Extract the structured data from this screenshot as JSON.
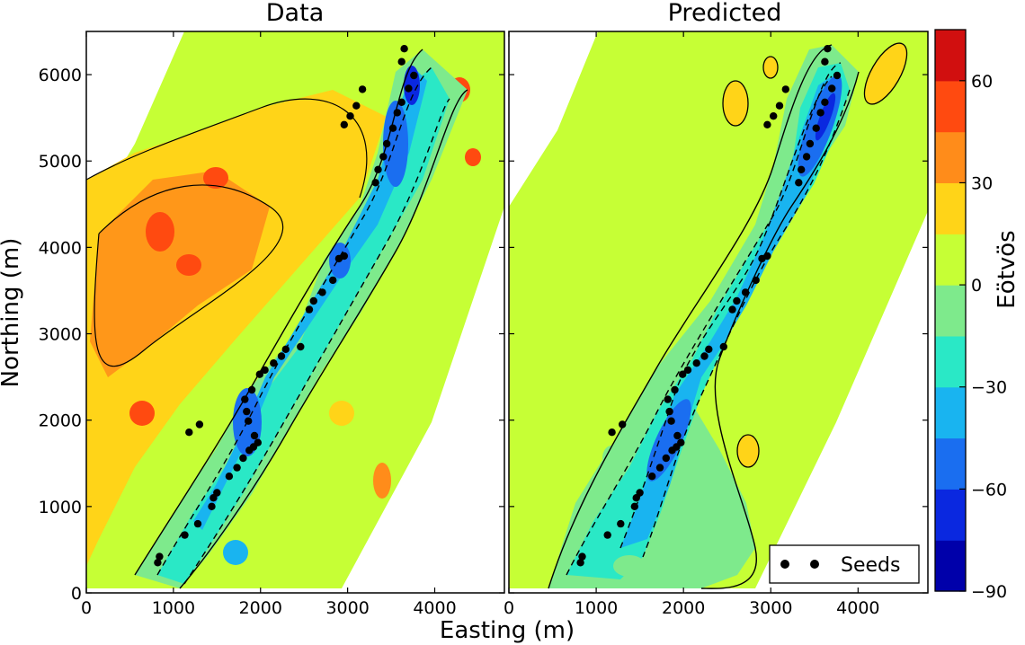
{
  "chart_data": [
    {
      "type": "heatmap",
      "title": "Data",
      "xlabel": "Easting (m)",
      "ylabel": "Northing (m)",
      "xlim": [
        0,
        4800
      ],
      "ylim": [
        0,
        6500
      ],
      "xticks": [
        0,
        1000,
        2000,
        3000,
        4000
      ],
      "yticks": [
        0,
        1000,
        2000,
        3000,
        4000,
        5000,
        6000
      ],
      "seeds": [
        [
          820,
          350
        ],
        [
          840,
          420
        ],
        [
          1130,
          670
        ],
        [
          1280,
          800
        ],
        [
          1440,
          1000
        ],
        [
          1460,
          1100
        ],
        [
          1500,
          1160
        ],
        [
          1640,
          1350
        ],
        [
          1730,
          1450
        ],
        [
          1800,
          1560
        ],
        [
          1870,
          1650
        ],
        [
          1920,
          1690
        ],
        [
          1970,
          1740
        ],
        [
          1930,
          1820
        ],
        [
          1860,
          1990
        ],
        [
          1840,
          2100
        ],
        [
          1820,
          2240
        ],
        [
          1900,
          2350
        ],
        [
          1990,
          2530
        ],
        [
          2050,
          2580
        ],
        [
          2150,
          2660
        ],
        [
          2240,
          2740
        ],
        [
          2290,
          2820
        ],
        [
          2460,
          2850
        ],
        [
          2560,
          3280
        ],
        [
          2610,
          3380
        ],
        [
          2710,
          3480
        ],
        [
          2830,
          3620
        ],
        [
          2900,
          3870
        ],
        [
          2960,
          3900
        ],
        [
          2960,
          5420
        ],
        [
          3030,
          5520
        ],
        [
          3100,
          5640
        ],
        [
          3170,
          5830
        ],
        [
          3320,
          4750
        ],
        [
          3350,
          4900
        ],
        [
          3410,
          5050
        ],
        [
          3450,
          5200
        ],
        [
          3520,
          5380
        ],
        [
          3570,
          5560
        ],
        [
          3620,
          5680
        ],
        [
          3700,
          5840
        ],
        [
          3760,
          5990
        ],
        [
          3620,
          6150
        ],
        [
          3650,
          6300
        ],
        [
          1180,
          1860
        ],
        [
          1300,
          1950
        ]
      ]
    },
    {
      "type": "heatmap",
      "title": "Predicted",
      "xlabel": "Easting (m)",
      "xlim": [
        0,
        4800
      ],
      "ylim": [
        0,
        6500
      ],
      "xticks": [
        0,
        1000,
        2000,
        3000,
        4000
      ],
      "seeds": [
        [
          820,
          350
        ],
        [
          840,
          420
        ],
        [
          1130,
          670
        ],
        [
          1280,
          800
        ],
        [
          1440,
          1000
        ],
        [
          1460,
          1100
        ],
        [
          1500,
          1160
        ],
        [
          1640,
          1350
        ],
        [
          1730,
          1450
        ],
        [
          1800,
          1560
        ],
        [
          1870,
          1650
        ],
        [
          1920,
          1690
        ],
        [
          1970,
          1740
        ],
        [
          1930,
          1820
        ],
        [
          1860,
          1990
        ],
        [
          1840,
          2100
        ],
        [
          1820,
          2240
        ],
        [
          1900,
          2350
        ],
        [
          1990,
          2530
        ],
        [
          2050,
          2580
        ],
        [
          2150,
          2660
        ],
        [
          2240,
          2740
        ],
        [
          2290,
          2820
        ],
        [
          2460,
          2850
        ],
        [
          2560,
          3280
        ],
        [
          2610,
          3380
        ],
        [
          2710,
          3480
        ],
        [
          2830,
          3620
        ],
        [
          2900,
          3870
        ],
        [
          2960,
          3900
        ],
        [
          2960,
          5420
        ],
        [
          3030,
          5520
        ],
        [
          3100,
          5640
        ],
        [
          3170,
          5830
        ],
        [
          3320,
          4750
        ],
        [
          3350,
          4900
        ],
        [
          3410,
          5050
        ],
        [
          3450,
          5200
        ],
        [
          3520,
          5380
        ],
        [
          3570,
          5560
        ],
        [
          3620,
          5680
        ],
        [
          3700,
          5840
        ],
        [
          3760,
          5990
        ],
        [
          3620,
          6150
        ],
        [
          3650,
          6300
        ],
        [
          1180,
          1860
        ],
        [
          1300,
          1950
        ]
      ]
    }
  ],
  "colorbar": {
    "label": "Eötvös",
    "range": [
      -90,
      75
    ],
    "levels": [
      -90,
      -75,
      -60,
      -45,
      -30,
      -15,
      0,
      15,
      30,
      45,
      60,
      75
    ],
    "ticks": [
      -90,
      -60,
      -30,
      0,
      30,
      60
    ],
    "tick_labels": [
      "−90",
      "−60",
      "−30",
      "0",
      "30",
      "60"
    ],
    "colors": [
      "#0000aa",
      "#0a28e0",
      "#1a6ef0",
      "#19b4f0",
      "#2ae8c6",
      "#7eea8c",
      "#c6ff35",
      "#ffd418",
      "#ff8c1a",
      "#ff4a10",
      "#d10f0f"
    ]
  },
  "legend": {
    "label": "Seeds",
    "position": "lower-right"
  }
}
